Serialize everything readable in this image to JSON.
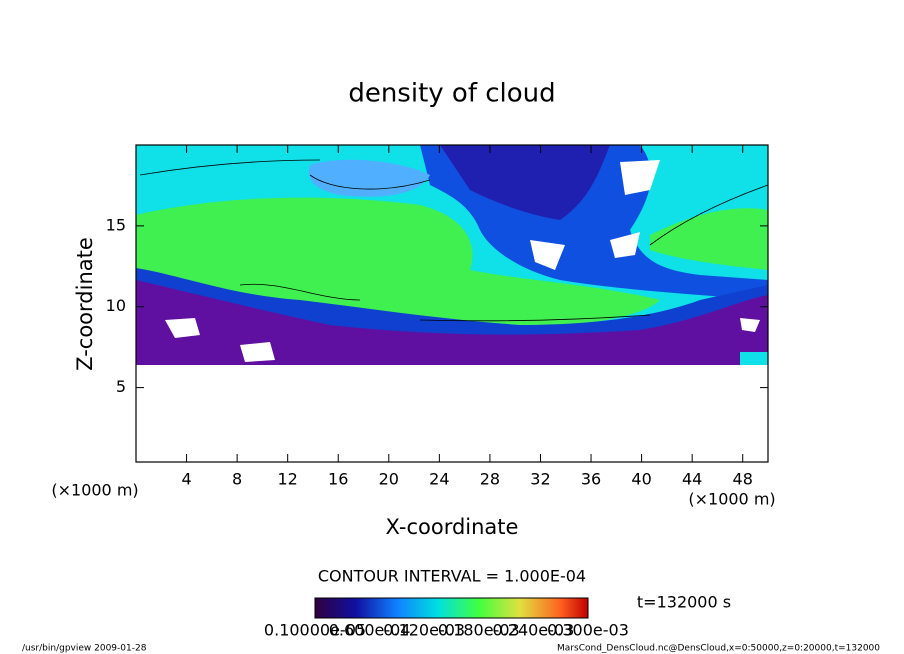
{
  "chart_data": {
    "type": "heatmap",
    "title": "density of cloud",
    "xlabel": "X-coordinate",
    "ylabel": "Z-coordinate",
    "xunit": "(×1000 m)",
    "yunit": "(×1000 m)",
    "xlim": [
      0,
      50
    ],
    "ylim": [
      0.4,
      20
    ],
    "xticks": [
      4,
      8,
      12,
      16,
      20,
      24,
      28,
      32,
      36,
      40,
      44,
      48
    ],
    "yticks": [
      5,
      10,
      15
    ],
    "contour_interval": "CONTOUR INTERVAL = 1.000E-04",
    "time_label": "t=132000 s",
    "colorbar_labels": [
      "0.10000e-05",
      "0.600e-04",
      "0.120e-03",
      "0.180e-03",
      "0.240e-03",
      "0.300e-03"
    ],
    "footer_left": "/usr/bin/gpview  2009-01-28",
    "footer_right": "MarsCond_DensCloud.nc@DensCloud,x=0:50000,z=0:20000,t=132000"
  }
}
